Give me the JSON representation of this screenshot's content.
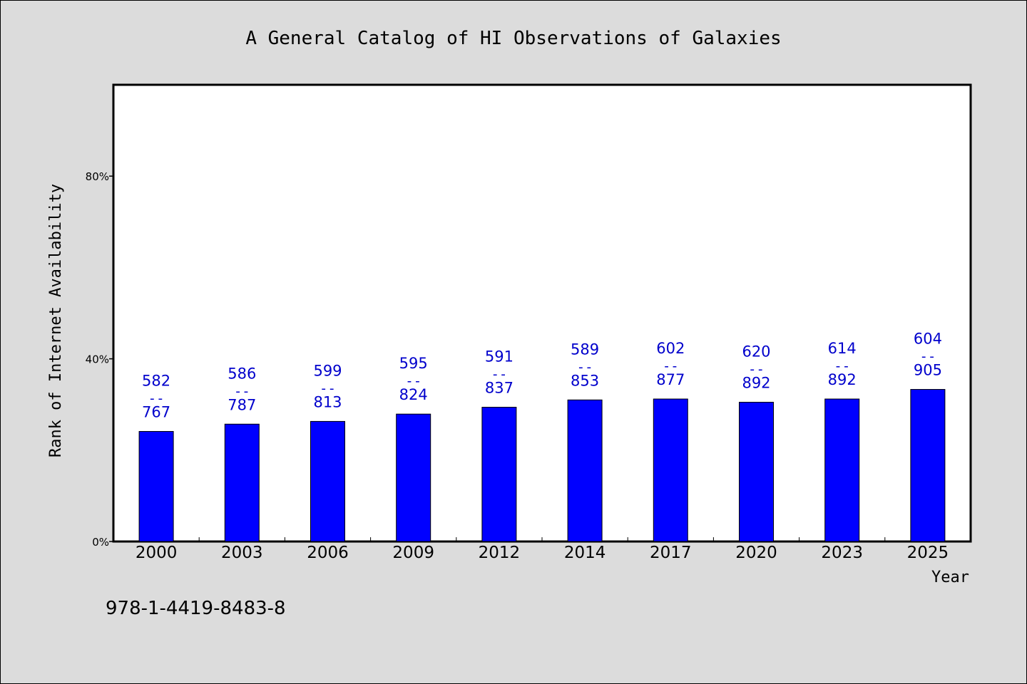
{
  "chart_data": {
    "type": "bar",
    "title": "A General Catalog of HI Observations of Galaxies",
    "xlabel": "Year",
    "ylabel": "Rank of Internet Availability",
    "ylim": [
      0,
      100
    ],
    "yticks": [
      "0%",
      "40%",
      "80%"
    ],
    "ytick_values": [
      0,
      40,
      80
    ],
    "categories": [
      "2000",
      "2003",
      "2006",
      "2009",
      "2012",
      "2014",
      "2017",
      "2020",
      "2023",
      "2025"
    ],
    "values": [
      24.1,
      25.7,
      26.3,
      27.9,
      29.4,
      31.0,
      31.2,
      30.5,
      31.2,
      33.3
    ],
    "labels": [
      {
        "top": "582",
        "bottom": "767"
      },
      {
        "top": "586",
        "bottom": "787"
      },
      {
        "top": "599",
        "bottom": "813"
      },
      {
        "top": "595",
        "bottom": "824"
      },
      {
        "top": "591",
        "bottom": "837"
      },
      {
        "top": "589",
        "bottom": "853"
      },
      {
        "top": "602",
        "bottom": "877"
      },
      {
        "top": "620",
        "bottom": "892"
      },
      {
        "top": "614",
        "bottom": "892"
      },
      {
        "top": "604",
        "bottom": "905"
      }
    ],
    "label_separator": "--",
    "grid": false,
    "bar_color": "#0000ff",
    "label_color": "#0000cc",
    "background": "#dcdcdc",
    "plot_background": "#ffffff"
  },
  "footer": {
    "isbn": "978-1-4419-8483-8"
  }
}
